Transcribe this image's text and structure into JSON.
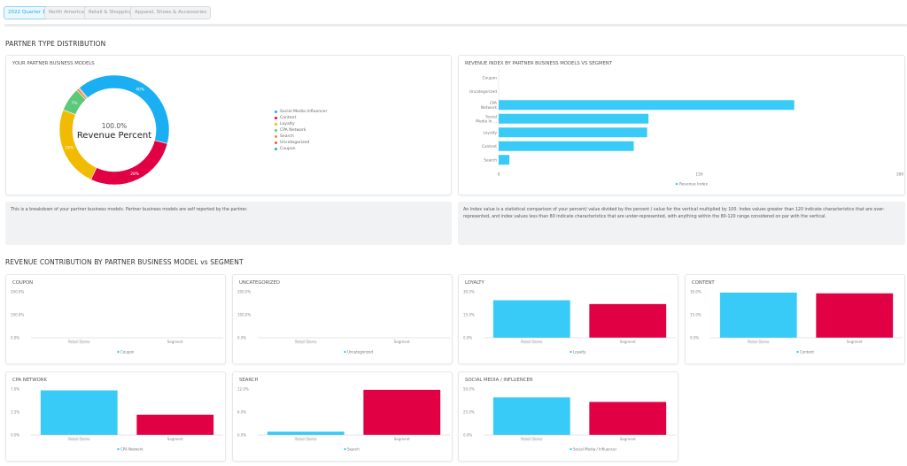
{
  "filters": [
    {
      "label": "2022 Quarter 1",
      "active": true
    },
    {
      "label": "North America",
      "active": false
    },
    {
      "label": "Retail & Shopping",
      "active": false
    },
    {
      "label": "Apparel, Shoes & Accessories",
      "active": false
    }
  ],
  "sections": {
    "distribution": "PARTNER TYPE DISTRIBUTION",
    "contribution": "REVENUE CONTRIBUTION BY PARTNER BUSINESS MODEL vs SEGMENT"
  },
  "colors": {
    "social": "#1aaef2",
    "content": "#e20045",
    "loyalty": "#f0bb00",
    "cpa": "#5cc87a",
    "search": "#f08c30",
    "uncategorized": "#f25c2a",
    "coupon": "#17b6a6",
    "retail": "#38cbf7",
    "segment": "#e20045"
  },
  "descriptions": {
    "models": "This is a breakdown of your partner business models. Partner business models are self reported by the partner.",
    "index": "An Index value is a statistical comparison of your percent/ value divided by the percent / value for the vertical multiplied by 100. Index values greater than 120 indicate characteristics that are over-represented, and index values less than 80 indicate characteristics that are under-represented, with anything within the 80-120 range considered on par with the vertical."
  },
  "chart_data": [
    {
      "type": "pie",
      "title": "YOUR PARTNER BUSINESS MODELS",
      "center_value": "100.0%",
      "center_label": "Revenue Percent",
      "slices": [
        {
          "name": "Social Media Influencer",
          "value": 40,
          "label": "40%",
          "color": "#1aaef2"
        },
        {
          "name": "Content",
          "value": 28,
          "label": "28%",
          "color": "#e20045"
        },
        {
          "name": "Loyalty",
          "value": 24,
          "label": "24%",
          "color": "#f0bb00"
        },
        {
          "name": "CPA Network",
          "value": 7,
          "label": "7%",
          "color": "#5cc87a"
        },
        {
          "name": "Search",
          "value": 0.7,
          "label": "",
          "color": "#f08c30"
        },
        {
          "name": "Uncategorized",
          "value": 0.3,
          "label": "",
          "color": "#f25c2a"
        },
        {
          "name": "Coupon",
          "value": 0,
          "label": "",
          "color": "#17b6a6"
        }
      ]
    },
    {
      "type": "bar",
      "orientation": "horizontal",
      "title": "REVENUE INDEX BY PARTNER BUSINESS MODELS VS SEGMENT",
      "categories": [
        "Coupon",
        "Uncategorized",
        "CPA Network",
        "Social Media In ...",
        "Loyalty",
        "Content",
        "Search"
      ],
      "category_labels": [
        [
          "Coupon"
        ],
        [
          "Uncategorized"
        ],
        [
          "CPA",
          "Network"
        ],
        [
          "Social",
          "Media In ..."
        ],
        [
          "Loyalty"
        ],
        [
          "Content"
        ],
        [
          "Search"
        ]
      ],
      "values": [
        0,
        0,
        221,
        112,
        111,
        101,
        8
      ],
      "xlim": [
        0,
        300
      ],
      "xticks": [
        "0",
        "150",
        "300"
      ],
      "series_name": "Revenue Index",
      "legend": "bottom"
    },
    {
      "type": "bar",
      "title": "COUPON",
      "categories": [
        "Retail Demo",
        "Segment"
      ],
      "values": [
        0,
        0
      ],
      "ylim": [
        0,
        200
      ],
      "yticks": [
        "0.0%",
        "100.0%",
        "200.0%"
      ],
      "legend_label": "Coupon"
    },
    {
      "type": "bar",
      "title": "UNCATEGORIZED",
      "categories": [
        "Retail Demo",
        "Segment"
      ],
      "values": [
        0,
        0
      ],
      "ylim": [
        0,
        200
      ],
      "yticks": [
        "0.0%",
        "100.0%",
        "200.0%"
      ],
      "legend_label": "Uncategorized"
    },
    {
      "type": "bar",
      "title": "LOYALTY",
      "categories": [
        "Retail Demo",
        "Segment"
      ],
      "values": [
        24.5,
        22
      ],
      "ylim": [
        0,
        30
      ],
      "yticks": [
        "0.0%",
        "15.0%",
        "30.0%"
      ],
      "legend_label": "Loyalty"
    },
    {
      "type": "bar",
      "title": "CONTENT",
      "categories": [
        "Retail Demo",
        "Segment"
      ],
      "values": [
        29.5,
        29
      ],
      "ylim": [
        0,
        30
      ],
      "yticks": [
        "0.0%",
        "15.0%",
        "30.0%"
      ],
      "legend_label": "Content"
    },
    {
      "type": "bar",
      "title": "CPA NETWORK",
      "categories": [
        "Retail Demo",
        "Segment"
      ],
      "values": [
        6.8,
        3.1
      ],
      "ylim": [
        0,
        7
      ],
      "yticks": [
        "0.0%",
        "3.5%",
        "7.0%"
      ],
      "legend_label": "CPA Network"
    },
    {
      "type": "bar",
      "title": "SEARCH",
      "categories": [
        "Retail Demo",
        "Segment"
      ],
      "values": [
        0.9,
        11.8
      ],
      "ylim": [
        0,
        12
      ],
      "yticks": [
        "0.0%",
        "6.0%",
        "12.0%"
      ],
      "legend_label": "Search"
    },
    {
      "type": "bar",
      "title": "SOCIAL MEDIA / INFLUENCER",
      "categories": [
        "Retail Demo",
        "Segment"
      ],
      "values": [
        41,
        36
      ],
      "ylim": [
        0,
        50
      ],
      "yticks": [
        "0.0%",
        "25.0%",
        "50.0%"
      ],
      "legend_label": "Social Media / Influencer"
    }
  ]
}
